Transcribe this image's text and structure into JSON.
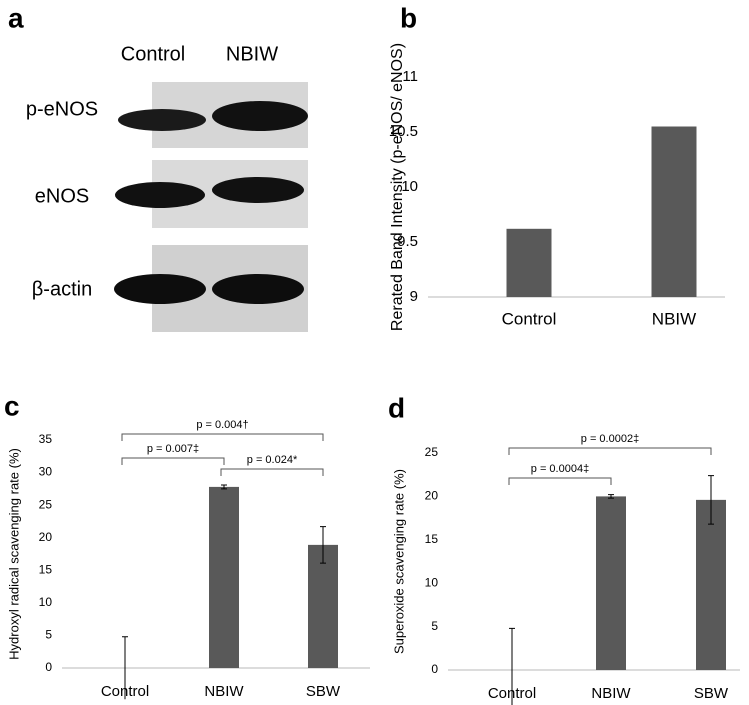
{
  "blot": {
    "panel": "a",
    "columns": [
      "Control",
      "NBIW"
    ],
    "rows": [
      "p-eNOS",
      "eNOS",
      "β-actin"
    ]
  },
  "chart_data": [
    {
      "type": "bar",
      "panel": "b",
      "ylabel": "Rerated Band Intensity (p-eNOS/ eNOS)",
      "categories": [
        "Control",
        "NBIW"
      ],
      "values": [
        9.62,
        10.55
      ],
      "color": "#595959",
      "ylim": [
        9,
        11
      ],
      "yticks": [
        9,
        9.5,
        10,
        10.5,
        11
      ]
    },
    {
      "type": "bar",
      "panel": "c",
      "ylabel": "Hydroxyl radical scavenging rate (%)",
      "categories": [
        "Control",
        "NBIW",
        "SBW"
      ],
      "values": [
        0,
        27.8,
        18.9
      ],
      "errors": [
        4.8,
        0.3,
        2.8
      ],
      "color": "#595959",
      "ylim": [
        0,
        35
      ],
      "yticks": [
        0,
        5,
        10,
        15,
        20,
        25,
        30,
        35
      ],
      "annotations": [
        "p = 0.004†",
        "p = 0.007‡",
        "p = 0.024*"
      ]
    },
    {
      "type": "bar",
      "panel": "d",
      "ylabel": "Superoxide scavenging rate (%)",
      "categories": [
        "Control",
        "NBIW",
        "SBW"
      ],
      "values": [
        0,
        20.0,
        19.6
      ],
      "errors": [
        4.8,
        0.2,
        2.8
      ],
      "color": "#595959",
      "ylim": [
        0,
        25
      ],
      "yticks": [
        0,
        5,
        10,
        15,
        20,
        25
      ],
      "annotations": [
        "p = 0.0002‡",
        "p = 0.0004‡"
      ]
    }
  ]
}
